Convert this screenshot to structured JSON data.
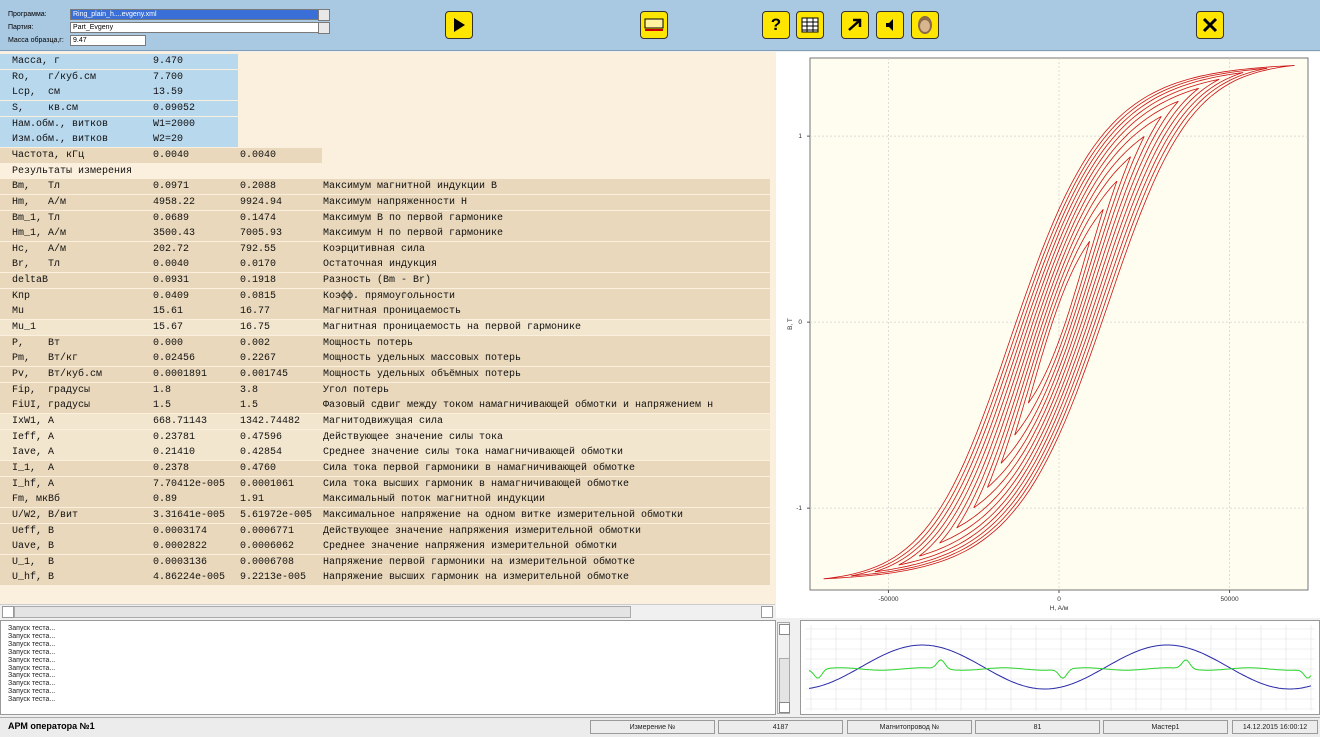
{
  "toolbar": {
    "program_label": "Программа:",
    "program": "Ring_plain_h....evgeny.xml",
    "batch_label": "Партия:",
    "batch": "Part_Evgeny",
    "mass_label": "Масса образца,г:",
    "mass": "9.47"
  },
  "table": {
    "rows": [
      [
        "Масса, г",
        "9.470"
      ],
      [
        "Ro,   г/куб.см",
        "7.700"
      ],
      [
        "Lср,  см",
        "13.59"
      ],
      [
        "S,    кв.см",
        "0.09052"
      ],
      [
        "Нам.обм., витков",
        "W1=2000"
      ],
      [
        "Изм.обм., витков",
        "W2=20"
      ],
      [
        "Частота, кГц",
        "0.0040",
        "0.0040"
      ],
      [
        "Результаты измерения"
      ],
      [
        "Bm,   Тл",
        "0.0971",
        "0.2088",
        "Максимум магнитной индукции B"
      ],
      [
        "Hm,   А/м",
        "4958.22",
        "9924.94",
        "Максимум напряженности H"
      ],
      [
        "Bm_1, Тл",
        "0.0689",
        "0.1474",
        "Максимум B по первой гармонике"
      ],
      [
        "Hm_1, А/м",
        "3500.43",
        "7005.93",
        "Максимум H по первой гармонике"
      ],
      [
        "Hc,   А/м",
        "202.72",
        "792.55",
        "Коэрцитивная сила"
      ],
      [
        "Br,   Тл",
        "0.0040",
        "0.0170",
        "Остаточная индукция"
      ],
      [
        "deltaB",
        "0.0931",
        "0.1918",
        "Разность (Bm - Br)"
      ],
      [
        "Kпр",
        "0.0409",
        "0.0815",
        "Коэфф. прямоугольности"
      ],
      [
        "Mu",
        "15.61",
        "16.77",
        "Магнитная проницаемость"
      ],
      [
        "Mu_1",
        "15.67",
        "16.75",
        "Магнитная проницаемость на первой гармонике"
      ],
      [
        "P,    Вт",
        "0.000",
        "0.002",
        "Мощность потерь"
      ],
      [
        "Pm,   Вт/кг",
        "0.02456",
        "0.2267",
        "Мощность удельных массовых потерь"
      ],
      [
        "Pv,   Вт/куб.см",
        "0.0001891",
        "0.001745",
        "Мощность удельных объёмных потерь"
      ],
      [
        "Fip,  градусы",
        "1.8",
        "3.8",
        "Угол потерь"
      ],
      [
        "FiUI, градусы",
        "1.5",
        "1.5",
        "Фазовый сдвиг между током намагничивающей обмотки и напряжением н"
      ],
      [
        "IxW1, А",
        "668.71143",
        "1342.74482",
        "Магнитодвижущая сила"
      ],
      [
        "Ieff, А",
        "0.23781",
        "0.47596",
        "Действующее значение силы тока"
      ],
      [
        "Iave, А",
        "0.21410",
        "0.42854",
        "Среднее значение силы тока намагничивающей обмотки"
      ],
      [
        "I_1,  А",
        "0.2378",
        "0.4760",
        "Сила тока первой гармоники в намагничивающей обмотке"
      ],
      [
        "I_hf, А",
        "7.70412e-005",
        "0.0001061",
        "Сила тока высших гармоник в намагничивающей обмотке"
      ],
      [
        "Fm, мкВб",
        "0.89",
        "1.91",
        "Максимальный поток магнитной индукции"
      ],
      [
        "U/W2, В/вит",
        "3.31641e-005",
        "5.61972e-005",
        "Максимальное напряжение на одном витке измерительной обмотки"
      ],
      [
        "Ueff, В",
        "0.0003174",
        "0.0006771",
        "Действующее значение напряжения измерительной обмотки"
      ],
      [
        "Uave, В",
        "0.0002822",
        "0.0006062",
        "Среднее значение напряжения измерительной обмотки"
      ],
      [
        "U_1,  В",
        "0.0003136",
        "0.0006708",
        "Напряжение первой гармоники на измерительной обмотке"
      ],
      [
        "U_hf, В",
        "4.86224e-005",
        "9.2213e-005",
        "Напряжение высших гармоник на измерительной обмотке"
      ]
    ]
  },
  "log": [
    "Запуск теста...",
    "Запуск теста...",
    "Запуск теста...",
    "Запуск теста...",
    "Запуск теста...",
    "Запуск теста...",
    "Запуск теста...",
    "Запуск теста...",
    "Запуск теста...",
    "Запуск теста..."
  ],
  "status": {
    "operator": "АРМ оператора №1",
    "measurement_label": "Измерение №",
    "measurement": 4187,
    "core_label": "Магнитопровод №",
    "core": 81,
    "master": "Мастер1",
    "datetime": "14.12.2015  16:00:12"
  },
  "chart_data": {
    "type": "hysteresis",
    "xlabel": "H, A/м",
    "ylabel": "B, T",
    "xlim": [
      -73000,
      73000
    ],
    "ylim": [
      -1.44,
      1.42
    ],
    "xticks": [
      -50000,
      0,
      50000
    ],
    "yticks": [
      -1,
      0,
      1
    ],
    "grid": true,
    "color": "#cc1111",
    "loops": [
      {
        "hmax": 69000,
        "hc": 13000
      },
      {
        "hmax": 61000,
        "hc": 12000
      },
      {
        "hmax": 54000,
        "hc": 11000
      },
      {
        "hmax": 47000,
        "hc": 10000
      },
      {
        "hmax": 41000,
        "hc": 9000
      },
      {
        "hmax": 35000,
        "hc": 8000
      },
      {
        "hmax": 30000,
        "hc": 7000
      },
      {
        "hmax": 25000,
        "hc": 6000
      },
      {
        "hmax": 21000,
        "hc": 5000
      },
      {
        "hmax": 17000,
        "hc": 4000
      },
      {
        "hmax": 13000,
        "hc": 3000
      },
      {
        "hmax": 9000,
        "hc": 2000
      }
    ]
  }
}
